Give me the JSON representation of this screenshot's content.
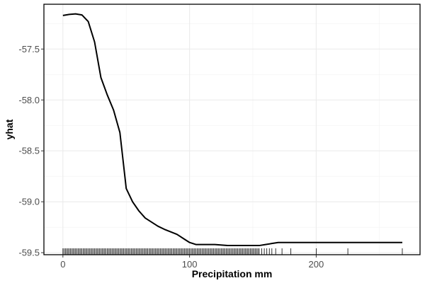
{
  "chart_data": {
    "type": "line",
    "xlabel": "Precipitation mm",
    "ylabel": "yhat",
    "xlim": [
      -15,
      282
    ],
    "ylim": [
      -59.52,
      -57.06
    ],
    "x_ticks": [
      0,
      100,
      200
    ],
    "x_tick_labels": [
      "0",
      "100",
      "200"
    ],
    "y_ticks": [
      -57.5,
      -58.0,
      -58.5,
      -59.0,
      -59.5
    ],
    "y_tick_labels": [
      "-57.5",
      "-58.0",
      "-58.5",
      "-59.0",
      "-59.5"
    ],
    "grid": true,
    "series": [
      {
        "x": [
          0,
          5,
          10,
          15,
          20,
          25,
          30,
          35,
          40,
          45,
          50,
          55,
          60,
          65,
          70,
          75,
          80,
          90,
          95,
          100,
          105,
          110,
          120,
          130,
          140,
          150,
          155,
          160,
          165,
          170,
          180,
          200,
          240,
          268
        ],
        "y": [
          -57.17,
          -57.16,
          -57.155,
          -57.165,
          -57.23,
          -57.43,
          -57.78,
          -57.95,
          -58.1,
          -58.32,
          -58.87,
          -59.0,
          -59.09,
          -59.16,
          -59.2,
          -59.24,
          -59.27,
          -59.32,
          -59.36,
          -59.4,
          -59.42,
          -59.42,
          -59.42,
          -59.43,
          -59.43,
          -59.43,
          -59.43,
          -59.42,
          -59.41,
          -59.4,
          -59.4,
          -59.4,
          -59.4,
          -59.4
        ]
      }
    ],
    "rug": {
      "x": [
        0,
        1,
        2,
        3,
        4,
        5,
        6,
        7,
        8,
        9,
        10,
        11,
        12,
        13,
        14,
        15,
        16,
        17,
        18,
        19,
        20,
        21,
        22,
        23,
        24,
        25,
        26,
        27,
        28,
        29,
        30,
        31,
        32,
        33,
        34,
        35,
        36,
        37,
        38,
        39,
        40,
        41,
        42,
        43,
        44,
        45,
        46,
        47,
        48,
        49,
        50,
        51,
        52,
        53,
        54,
        55,
        56,
        57,
        58,
        59,
        60,
        61,
        62,
        63,
        64,
        65,
        66,
        67,
        68,
        69,
        70,
        71,
        72,
        73,
        74,
        75,
        76,
        77,
        78,
        79,
        80,
        81,
        82,
        83,
        84,
        85,
        86,
        87,
        88,
        89,
        90,
        91,
        92,
        93,
        94,
        95,
        96,
        97,
        98,
        99,
        100,
        101,
        102,
        103,
        104,
        105,
        106,
        107,
        108,
        109,
        110,
        111,
        112,
        113,
        114,
        115,
        116,
        117,
        118,
        119,
        120,
        121,
        122,
        123,
        124,
        125,
        126,
        127,
        128,
        129,
        130,
        131,
        132,
        133,
        134,
        135,
        136,
        137,
        138,
        139,
        140,
        141,
        142,
        143,
        144,
        145,
        146,
        147,
        148,
        149,
        150,
        151,
        152,
        153,
        154,
        155,
        157,
        159,
        161,
        163,
        165,
        168,
        173,
        180,
        200,
        225,
        268
      ]
    }
  }
}
